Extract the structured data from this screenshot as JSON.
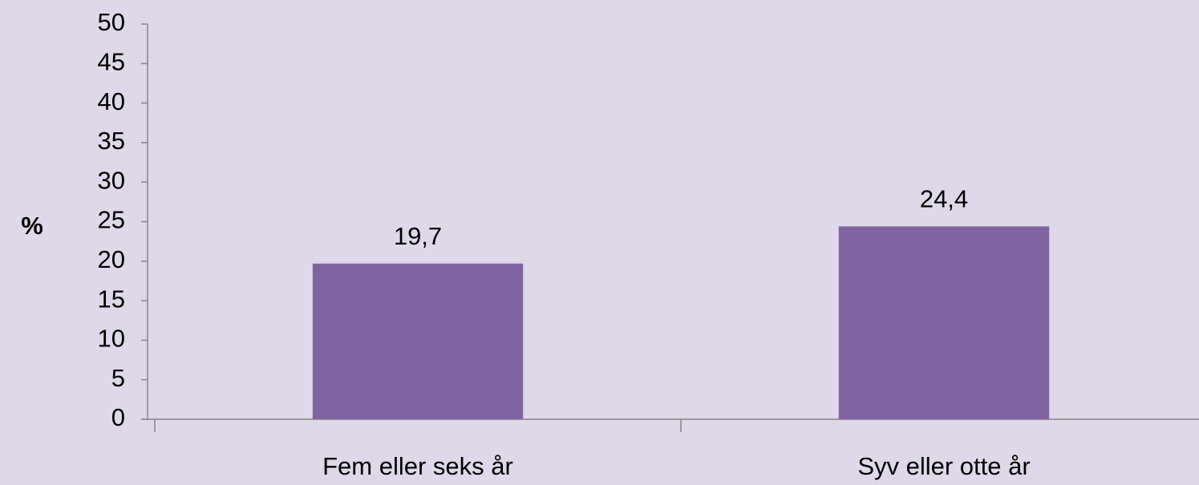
{
  "chart_data": {
    "type": "bar",
    "y_label": "%",
    "categories": [
      "Fem eller seks år",
      "Syv eller otte år"
    ],
    "values": [
      19.7,
      24.4
    ],
    "value_labels": [
      "19,7",
      "24,4"
    ],
    "color": "#8064a2",
    "ylim": [
      0,
      50
    ],
    "yticks": [
      0,
      5,
      10,
      15,
      20,
      25,
      30,
      35,
      40,
      45,
      50
    ],
    "grid": false
  }
}
